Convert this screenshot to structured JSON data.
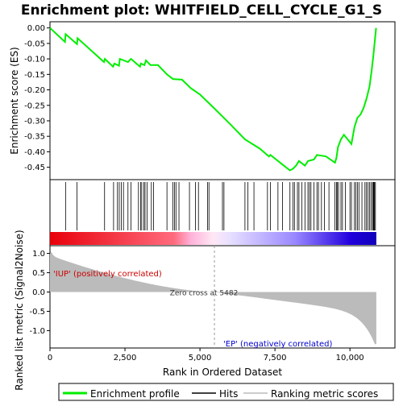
{
  "chart_data": {
    "type": "line",
    "title": "Enrichment plot: WHITFIELD_CELL_CYCLE_G1_S",
    "xlabel": "Rank in Ordered Dataset",
    "ylabel_top": "Enrichment score (ES)",
    "ylabel_bottom": "Ranked list metric (Signal2Noise)",
    "x_range": [
      0,
      11500
    ],
    "x_ticks": [
      0,
      2500,
      5000,
      7500,
      10000
    ],
    "x_tick_labels": [
      "0",
      "2,500",
      "5,000",
      "7,500",
      "10,000"
    ],
    "es_range": [
      -0.49,
      0.02
    ],
    "es_ticks": [
      0.0,
      -0.05,
      -0.1,
      -0.15,
      -0.2,
      -0.25,
      -0.3,
      -0.35,
      -0.4,
      -0.45
    ],
    "es_tick_labels": [
      "0.00",
      "-0.05",
      "-0.10",
      "-0.15",
      "-0.20",
      "-0.25",
      "-0.30",
      "-0.35",
      "-0.40",
      "-0.45"
    ],
    "metric_range": [
      -1.45,
      1.2
    ],
    "metric_ticks": [
      1.0,
      0.5,
      0.0,
      -0.5,
      -1.0
    ],
    "metric_tick_labels": [
      "1.0",
      "0.5",
      "0.0",
      "-0.5",
      "-1.0"
    ],
    "n_genes": 10880,
    "zero_cross": 5482,
    "zero_cross_label": "Zero cross at 5482",
    "pos_label": "'IUP' (positively correlated)",
    "neg_label": "'EP' (negatively correlated)",
    "es_profile": [
      [
        0,
        0.0
      ],
      [
        500,
        -0.045
      ],
      [
        520,
        -0.02
      ],
      [
        900,
        -0.052
      ],
      [
        920,
        -0.033
      ],
      [
        1800,
        -0.11
      ],
      [
        1830,
        -0.1
      ],
      [
        2100,
        -0.125
      ],
      [
        2150,
        -0.115
      ],
      [
        2300,
        -0.122
      ],
      [
        2330,
        -0.1
      ],
      [
        2600,
        -0.11
      ],
      [
        2700,
        -0.1
      ],
      [
        3000,
        -0.125
      ],
      [
        3030,
        -0.115
      ],
      [
        3150,
        -0.12
      ],
      [
        3200,
        -0.105
      ],
      [
        3350,
        -0.12
      ],
      [
        3600,
        -0.12
      ],
      [
        3900,
        -0.15
      ],
      [
        4100,
        -0.165
      ],
      [
        4400,
        -0.167
      ],
      [
        4700,
        -0.195
      ],
      [
        5000,
        -0.215
      ],
      [
        5482,
        -0.26
      ],
      [
        6000,
        -0.31
      ],
      [
        6500,
        -0.36
      ],
      [
        7000,
        -0.39
      ],
      [
        7300,
        -0.415
      ],
      [
        7350,
        -0.41
      ],
      [
        7800,
        -0.445
      ],
      [
        8000,
        -0.46
      ],
      [
        8100,
        -0.455
      ],
      [
        8200,
        -0.445
      ],
      [
        8300,
        -0.43
      ],
      [
        8500,
        -0.445
      ],
      [
        8600,
        -0.43
      ],
      [
        8800,
        -0.425
      ],
      [
        8900,
        -0.41
      ],
      [
        9200,
        -0.415
      ],
      [
        9500,
        -0.435
      ],
      [
        9550,
        -0.42
      ],
      [
        9600,
        -0.385
      ],
      [
        9700,
        -0.36
      ],
      [
        9800,
        -0.345
      ],
      [
        10050,
        -0.375
      ],
      [
        10150,
        -0.32
      ],
      [
        10250,
        -0.29
      ],
      [
        10350,
        -0.28
      ],
      [
        10450,
        -0.26
      ],
      [
        10550,
        -0.23
      ],
      [
        10650,
        -0.19
      ],
      [
        10720,
        -0.14
      ],
      [
        10780,
        -0.09
      ],
      [
        10830,
        -0.04
      ],
      [
        10870,
        0.0
      ]
    ],
    "hits": [
      520,
      900,
      1820,
      2120,
      2250,
      2310,
      2380,
      2450,
      2600,
      2700,
      2950,
      3020,
      3060,
      3130,
      3170,
      3240,
      3380,
      3450,
      3900,
      4100,
      4150,
      4200,
      4300,
      4650,
      4850,
      4950,
      5250,
      5300,
      5750,
      5800,
      6500,
      6600,
      6800,
      7250,
      7350,
      7600,
      7750,
      8000,
      8100,
      8150,
      8250,
      8300,
      8400,
      8500,
      8600,
      8650,
      8700,
      8800,
      8900,
      8950,
      9050,
      9150,
      9300,
      9500,
      9550,
      9580,
      9620,
      9700,
      9750,
      9850,
      10000,
      10050,
      10150,
      10200,
      10250,
      10300,
      10400,
      10500,
      10550,
      10600,
      10650,
      10700,
      10750,
      10780,
      10800,
      10820,
      10850
    ]
  },
  "legend": {
    "items": [
      {
        "label": "Enrichment profile",
        "color": "#00ee00"
      },
      {
        "label": "Hits",
        "color": "#000000"
      },
      {
        "label": "Ranking metric scores",
        "color": "#bbbbbb"
      }
    ]
  }
}
